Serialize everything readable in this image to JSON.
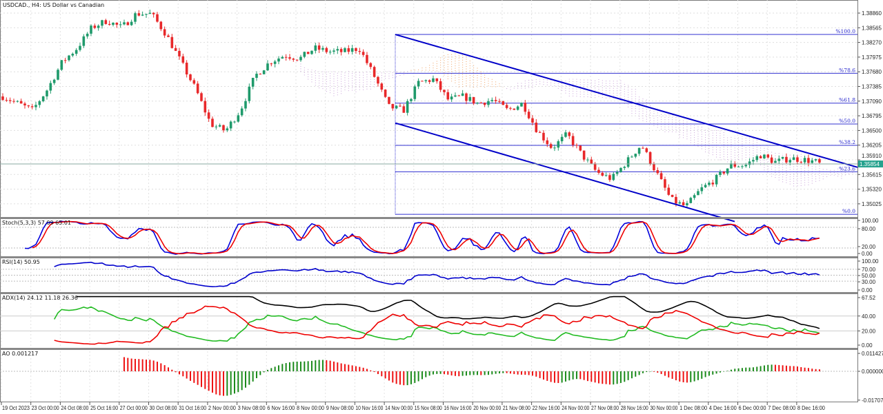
{
  "header": {
    "title": "USDCAD., H4:  US Dollar vs Canadian"
  },
  "colors": {
    "bull": "#1f9a6b",
    "bear": "#e8282a",
    "channel": "#0000c8",
    "fib": "#3030d0",
    "price_tag": "#26a28e",
    "cloud_up": "#f0a060",
    "cloud_down": "#c8a0d8",
    "stoch_main": "#0000dd",
    "stoch_signal": "#ee0000",
    "rsi": "#0000cc",
    "adx": "#000000",
    "plus_di": "#22bb22",
    "minus_di": "#ee0000",
    "ao_up": "#1a8a1a",
    "ao_down": "#ee1111"
  },
  "price_axis": [
    "1.38860",
    "1.38565",
    "1.38270",
    "1.37975",
    "1.37680",
    "1.37385",
    "1.37090",
    "1.36795",
    "1.36500",
    "1.36205",
    "1.35910",
    "1.35615",
    "1.35320",
    "1.35025"
  ],
  "current_price": "1.35854",
  "fib_levels": [
    {
      "label": "%100.0",
      "price": 1.3843
    },
    {
      "label": "%78.6",
      "price": 1.3765
    },
    {
      "label": "%61.8",
      "price": 1.3705
    },
    {
      "label": "%50.0",
      "price": 1.3663
    },
    {
      "label": "%38.2",
      "price": 1.362
    },
    {
      "label": "%23.6",
      "price": 1.3567
    },
    {
      "label": "%0.0",
      "price": 1.34815
    }
  ],
  "time_axis": [
    "19 Oct 2023",
    "23 Oct 00:00",
    "24 Oct 08:00",
    "25 Oct 16:00",
    "27 Oct 00:00",
    "30 Oct 08:00",
    "31 Oct 16:00",
    "2 Nov 00:00",
    "3 Nov 08:00",
    "6 Nov 16:00",
    "8 Nov 00:00",
    "9 Nov 08:00",
    "10 Nov 16:00",
    "14 Nov 00:00",
    "15 Nov 08:00",
    "16 Nov 16:00",
    "20 Nov 00:00",
    "21 Nov 08:00",
    "22 Nov 16:00",
    "24 Nov 00:00",
    "27 Nov 08:00",
    "28 Nov 16:00",
    "30 Nov 00:00",
    "1 Dec 08:00",
    "4 Dec 16:00",
    "6 Dec 00:00",
    "7 Dec 08:00",
    "8 Dec 16:00"
  ],
  "indicators": {
    "stoch": {
      "label": "Stoch(5,3,3) 57.09 65.01",
      "axis": [
        "100.00",
        "80.00",
        "20.00",
        "0.00"
      ]
    },
    "rsi": {
      "label": "RSI(14) 50.95",
      "axis": [
        "100.00",
        "70.00",
        "50.00",
        "30.00",
        "0.00"
      ]
    },
    "adx": {
      "label": "ADX(14) 24.12 11.18 26.36",
      "axis": [
        "67.52",
        "40.00",
        "20.00",
        "0.00"
      ]
    },
    "ao": {
      "label": "AO 0.001217",
      "axis": [
        "0.011427",
        "0.000000",
        "-0.017076"
      ]
    }
  },
  "chart_data": {
    "type": "candlestick",
    "symbol": "USDCAD.",
    "timeframe": "H4",
    "ylim": [
      1.349,
      1.3896
    ],
    "approx_close_path": [
      1.37184,
      1.37046,
      1.36907,
      1.37323,
      1.37877,
      1.38154,
      1.38569,
      1.38708,
      1.38569,
      1.38846,
      1.38846,
      1.38431,
      1.37877,
      1.37323,
      1.3663,
      1.36492,
      1.36907,
      1.376,
      1.37877,
      1.38015,
      1.37946,
      1.38154,
      1.38084,
      1.38084,
      1.38154,
      1.376,
      1.36976,
      1.36907,
      1.37461,
      1.3753,
      1.37115,
      1.37184,
      1.37046,
      1.37115,
      1.36907,
      1.37046,
      1.36492,
      1.36145,
      1.36422,
      1.36007,
      1.35661,
      1.35522,
      1.35868,
      1.36215,
      1.35661,
      1.35107,
      1.34968,
      1.35314,
      1.35522,
      1.35799,
      1.35799,
      1.36007,
      1.35868,
      1.35938,
      1.3591,
      1.35854
    ],
    "last_close": 1.35854,
    "channel": {
      "upper": [
        1.3843,
        1.3576
      ],
      "lower": [
        1.3665,
        1.3467
      ]
    },
    "overlays": [
      "Ichimoku cloud",
      "Fibonacci retracement",
      "Descending channel"
    ]
  }
}
